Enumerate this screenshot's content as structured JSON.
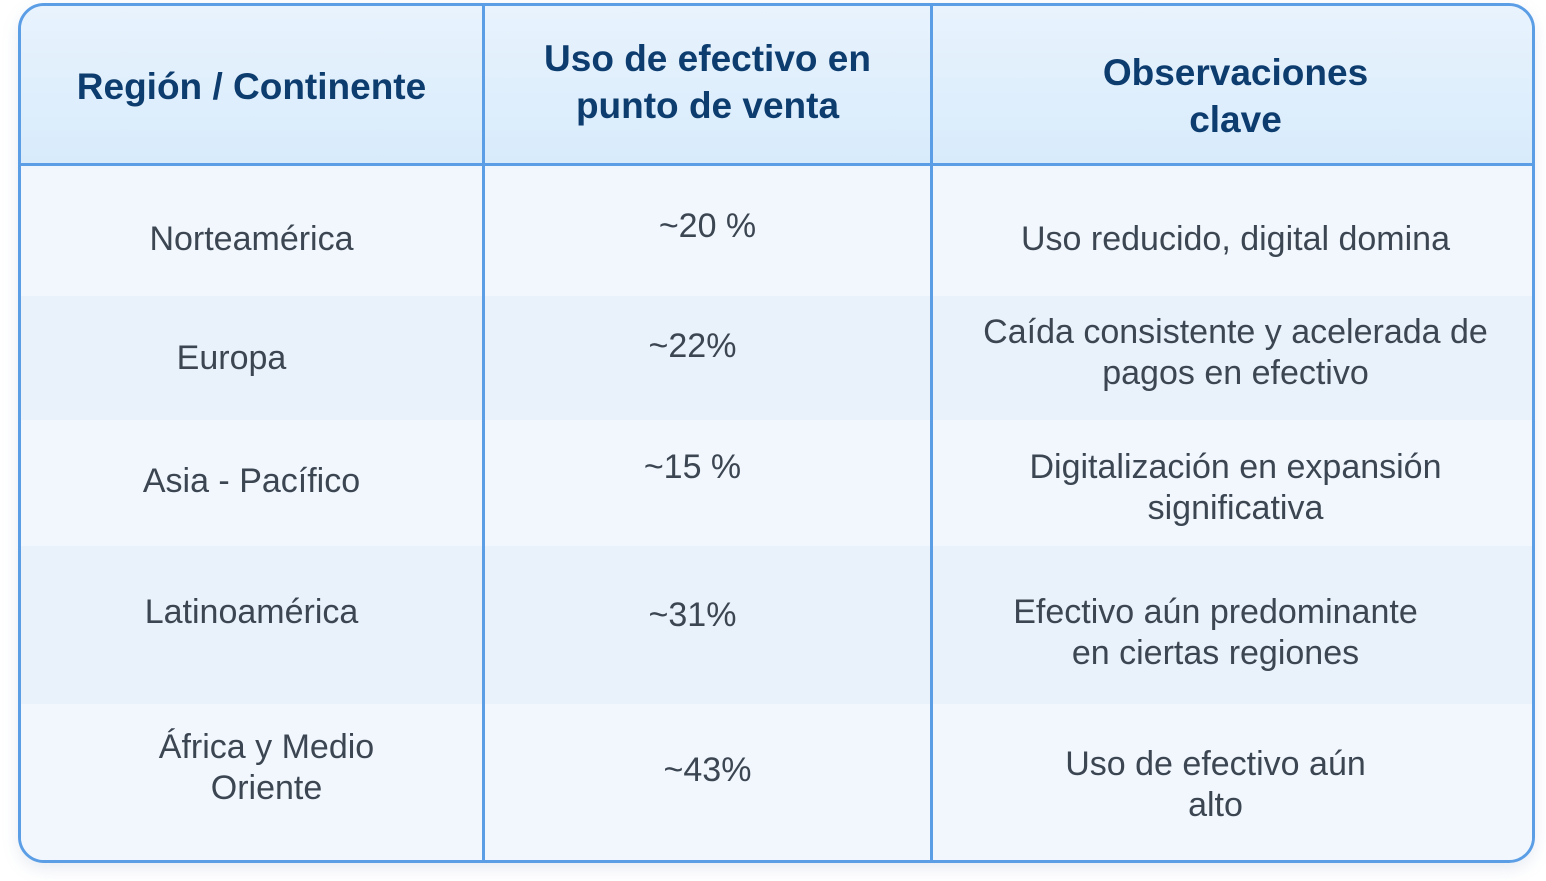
{
  "table": {
    "headers": [
      "Región / Continente",
      "Uso de efectivo en\npunto de venta",
      "Observaciones\nclave"
    ],
    "rows": [
      {
        "region": "Norteamérica",
        "cash_use": "~20 %",
        "observation": "Uso reducido, digital domina"
      },
      {
        "region": "Europa",
        "cash_use": "~22%",
        "observation": "Caída consistente y acelerada de\npagos en efectivo"
      },
      {
        "region": "Asia - Pacífico",
        "cash_use": "~15 %",
        "observation": "Digitalización en expansión\nsignificativa"
      },
      {
        "region": "Latinoamérica",
        "cash_use": "~31%",
        "observation": "Efectivo aún predominante\nen ciertas regiones"
      },
      {
        "region": "África y Medio\nOriente",
        "cash_use": "~43%",
        "observation": "Uso de efectivo aún\nalto"
      }
    ]
  },
  "colors": {
    "border": "#5b9ee6",
    "header_text": "#0d3c6e",
    "body_text": "#3c4652",
    "header_bg": "#dcedfb",
    "row_bg": "#f1f7fd"
  }
}
